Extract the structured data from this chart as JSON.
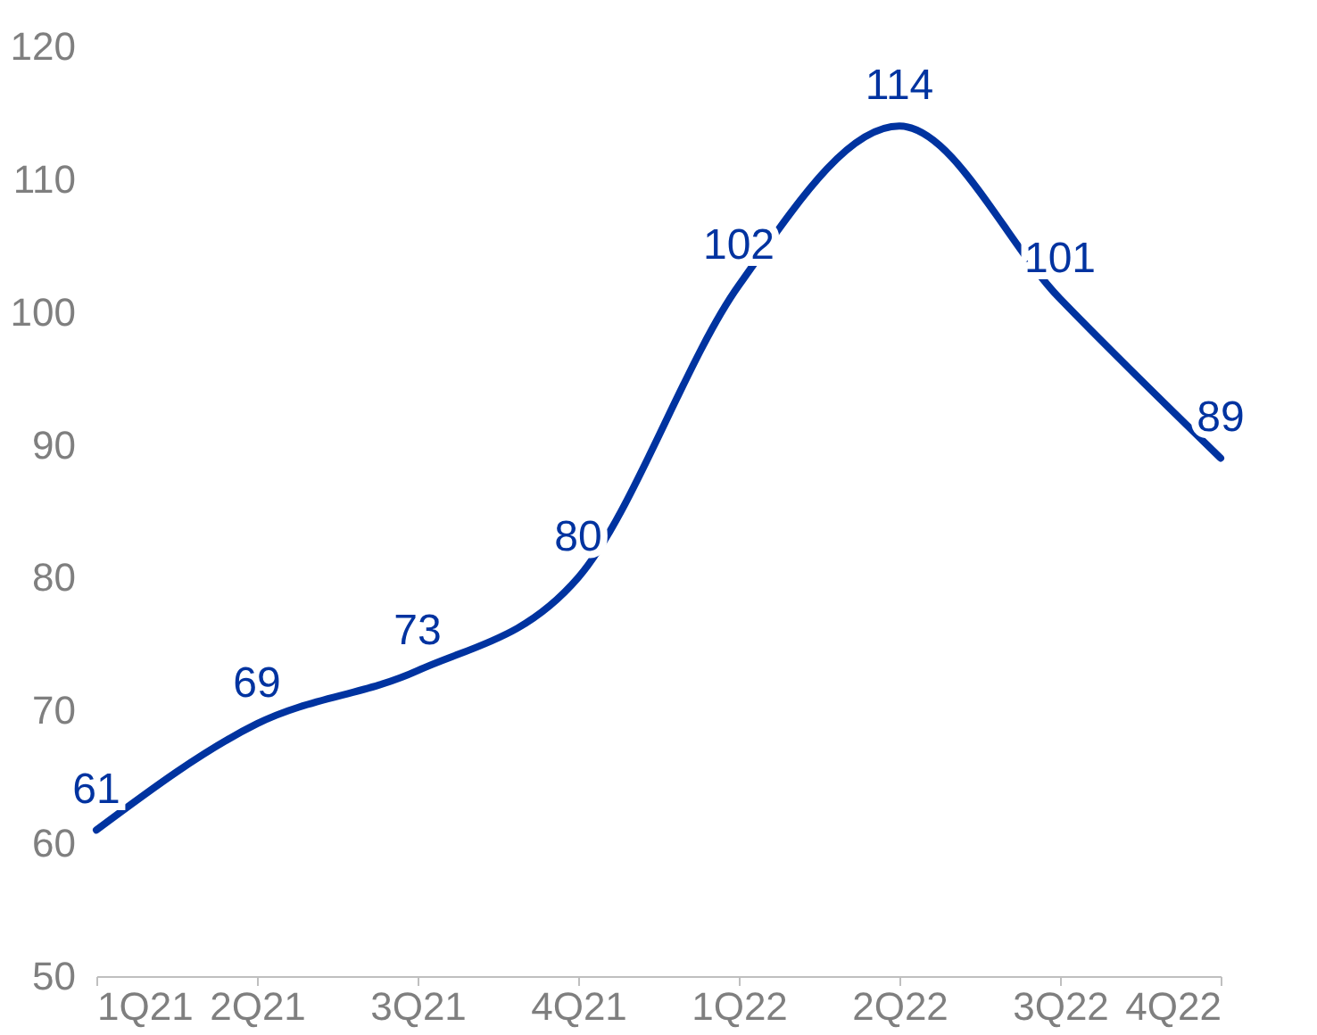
{
  "chart_data": {
    "type": "line",
    "categories": [
      "1Q21",
      "2Q21",
      "3Q21",
      "4Q21",
      "1Q22",
      "2Q22",
      "3Q22",
      "4Q22"
    ],
    "series": [
      {
        "color": "#0033a0",
        "values": [
          61,
          69,
          73,
          80,
          102,
          114,
          101,
          89
        ]
      }
    ],
    "ylim": [
      50,
      120
    ],
    "yticks": [
      50,
      60,
      70,
      80,
      90,
      100,
      110,
      120
    ],
    "grid": false,
    "data_labels": true,
    "marker": "none",
    "line_style": "solid"
  }
}
